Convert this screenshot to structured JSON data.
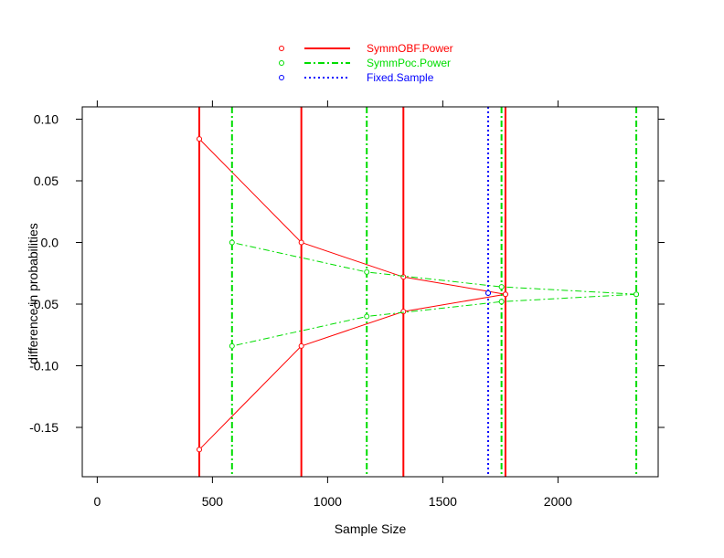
{
  "chart_data": {
    "type": "line",
    "title": "",
    "xlabel": "Sample Size",
    "ylabel": "difference in probabilities",
    "xlim": [
      -65,
      2435
    ],
    "ylim": [
      -0.19,
      0.11
    ],
    "x_ticks": [
      0,
      500,
      1000,
      1500,
      2000
    ],
    "x_tick_labels": [
      "0",
      "500",
      "1000",
      "1500",
      "2000"
    ],
    "y_ticks": [
      0.1,
      0.05,
      0.0,
      -0.05,
      -0.1,
      -0.15
    ],
    "y_tick_labels": [
      "0.10",
      "0.05",
      "0.0",
      "-0.05",
      "-0.10",
      "-0.15"
    ],
    "grid": false,
    "legend_position": "top-center",
    "series": [
      {
        "name": "SymmOBF.Power",
        "color": "#ff0000",
        "vline_style": "solid",
        "connect_style": "solid",
        "vlines": [
          443,
          886,
          1329,
          1772
        ],
        "upper": {
          "x": [
            443,
            886,
            1329,
            1772
          ],
          "y": [
            0.084,
            0.0,
            -0.028,
            -0.042
          ]
        },
        "lower": {
          "x": [
            443,
            886,
            1329,
            1772
          ],
          "y": [
            -0.168,
            -0.084,
            -0.056,
            -0.042
          ]
        }
      },
      {
        "name": "SymmPoc.Power",
        "color": "#00dd00",
        "vline_style": "dashdot",
        "connect_style": "dotdash",
        "vlines": [
          585,
          1170,
          1755,
          2340
        ],
        "upper": {
          "x": [
            585,
            1170,
            1755,
            2340
          ],
          "y": [
            0.0,
            -0.024,
            -0.036,
            -0.042
          ]
        },
        "lower": {
          "x": [
            585,
            1170,
            1755,
            2340
          ],
          "y": [
            -0.084,
            -0.06,
            -0.048,
            -0.042
          ]
        }
      },
      {
        "name": "Fixed.Sample",
        "color": "#0000ff",
        "vline_style": "dotted",
        "connect_style": "dotted",
        "vlines": [
          1697
        ],
        "upper": {
          "x": [
            1697
          ],
          "y": [
            -0.041
          ]
        },
        "lower": {
          "x": [
            1697
          ],
          "y": [
            -0.041
          ]
        }
      }
    ]
  }
}
